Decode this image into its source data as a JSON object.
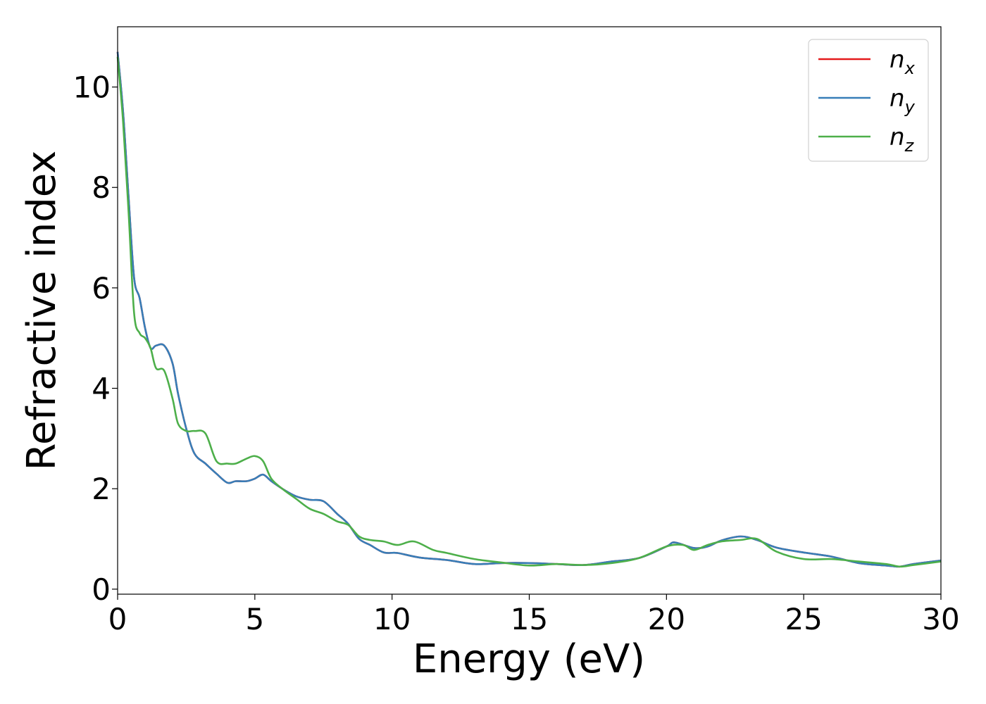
{
  "chart_data": {
    "type": "line",
    "title": "",
    "xlabel": "Energy (eV)",
    "ylabel": "Refractive index",
    "xlim": [
      0,
      30
    ],
    "ylim": [
      -0.1,
      11.2
    ],
    "xticks": [
      0,
      5,
      10,
      15,
      20,
      25,
      30
    ],
    "yticks": [
      0,
      2,
      4,
      6,
      8,
      10
    ],
    "grid": false,
    "legend_position": "top-right",
    "series": [
      {
        "name": "n_x",
        "legend_main": "n",
        "legend_sub": "x",
        "color": "#e41a1c",
        "x": [
          0,
          0.2,
          0.4,
          0.6,
          0.8,
          1.0,
          1.2,
          1.4,
          1.7,
          2.0,
          2.2,
          2.5,
          2.8,
          3.2,
          3.6,
          4.0,
          4.3,
          4.7,
          5.0,
          5.3,
          5.6,
          6.0,
          6.5,
          7.0,
          7.5,
          8.0,
          8.4,
          8.8,
          9.2,
          9.7,
          10.2,
          11.0,
          12.0,
          13.0,
          14.0,
          15.0,
          16.0,
          17.0,
          18.0,
          19.0,
          20.0,
          20.3,
          21.0,
          21.5,
          22.0,
          22.7,
          23.3,
          24.0,
          25.0,
          26.0,
          27.0,
          28.0,
          28.5,
          29.0,
          30.0
        ],
        "y": [
          10.7,
          9.5,
          7.8,
          6.2,
          5.8,
          5.2,
          4.8,
          4.85,
          4.85,
          4.5,
          3.9,
          3.2,
          2.7,
          2.5,
          2.3,
          2.12,
          2.15,
          2.15,
          2.2,
          2.28,
          2.15,
          2.0,
          1.85,
          1.78,
          1.75,
          1.5,
          1.3,
          1.0,
          0.88,
          0.73,
          0.72,
          0.63,
          0.58,
          0.5,
          0.52,
          0.52,
          0.5,
          0.48,
          0.55,
          0.62,
          0.85,
          0.93,
          0.82,
          0.85,
          0.97,
          1.05,
          0.98,
          0.83,
          0.73,
          0.65,
          0.52,
          0.47,
          0.45,
          0.5,
          0.57
        ]
      },
      {
        "name": "n_y",
        "legend_main": "n",
        "legend_sub": "y",
        "color": "#377eb8",
        "x": [
          0,
          0.2,
          0.4,
          0.6,
          0.8,
          1.0,
          1.2,
          1.4,
          1.7,
          2.0,
          2.2,
          2.5,
          2.8,
          3.2,
          3.6,
          4.0,
          4.3,
          4.7,
          5.0,
          5.3,
          5.6,
          6.0,
          6.5,
          7.0,
          7.5,
          8.0,
          8.4,
          8.8,
          9.2,
          9.7,
          10.2,
          11.0,
          12.0,
          13.0,
          14.0,
          15.0,
          16.0,
          17.0,
          18.0,
          19.0,
          20.0,
          20.3,
          21.0,
          21.5,
          22.0,
          22.7,
          23.3,
          24.0,
          25.0,
          26.0,
          27.0,
          28.0,
          28.5,
          29.0,
          30.0
        ],
        "y": [
          10.7,
          9.5,
          7.8,
          6.2,
          5.8,
          5.2,
          4.8,
          4.85,
          4.85,
          4.5,
          3.9,
          3.2,
          2.7,
          2.5,
          2.3,
          2.12,
          2.15,
          2.15,
          2.2,
          2.28,
          2.15,
          2.0,
          1.85,
          1.78,
          1.75,
          1.5,
          1.3,
          1.0,
          0.88,
          0.73,
          0.72,
          0.63,
          0.58,
          0.5,
          0.52,
          0.52,
          0.5,
          0.48,
          0.55,
          0.62,
          0.85,
          0.93,
          0.82,
          0.85,
          0.97,
          1.05,
          0.98,
          0.83,
          0.73,
          0.65,
          0.52,
          0.47,
          0.45,
          0.5,
          0.57
        ]
      },
      {
        "name": "n_z",
        "legend_main": "n",
        "legend_sub": "z",
        "color": "#4daf4a",
        "x": [
          0,
          0.2,
          0.4,
          0.6,
          0.8,
          1.0,
          1.2,
          1.4,
          1.7,
          2.0,
          2.2,
          2.5,
          2.8,
          3.2,
          3.6,
          4.0,
          4.3,
          4.7,
          5.0,
          5.3,
          5.6,
          6.0,
          6.5,
          7.0,
          7.5,
          8.0,
          8.4,
          8.8,
          9.2,
          9.7,
          10.2,
          10.8,
          11.5,
          12.0,
          13.0,
          14.0,
          15.0,
          16.0,
          17.0,
          18.0,
          19.0,
          20.0,
          20.6,
          21.0,
          21.5,
          22.0,
          22.7,
          23.3,
          24.0,
          25.0,
          26.0,
          27.0,
          28.0,
          28.5,
          29.0,
          30.0
        ],
        "y": [
          10.6,
          9.3,
          7.5,
          5.5,
          5.1,
          5.0,
          4.8,
          4.4,
          4.35,
          3.8,
          3.3,
          3.15,
          3.15,
          3.1,
          2.55,
          2.5,
          2.5,
          2.6,
          2.65,
          2.55,
          2.2,
          2.0,
          1.8,
          1.6,
          1.5,
          1.35,
          1.28,
          1.05,
          0.98,
          0.95,
          0.88,
          0.95,
          0.78,
          0.72,
          0.6,
          0.53,
          0.47,
          0.5,
          0.48,
          0.52,
          0.62,
          0.85,
          0.88,
          0.78,
          0.88,
          0.95,
          0.98,
          1.0,
          0.75,
          0.6,
          0.6,
          0.55,
          0.5,
          0.45,
          0.48,
          0.55
        ]
      }
    ]
  }
}
